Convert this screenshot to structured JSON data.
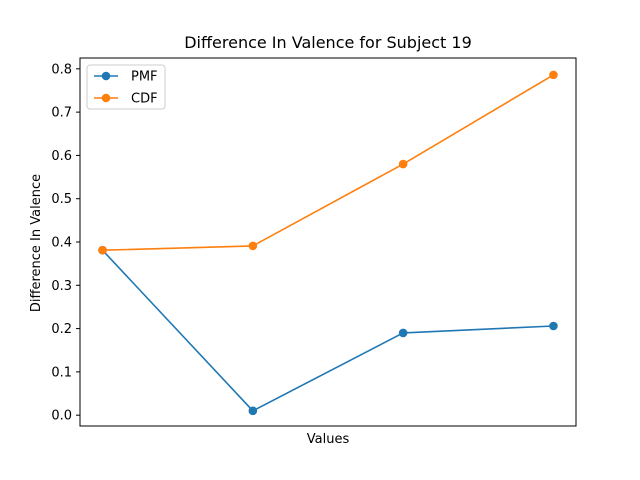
{
  "chart_data": {
    "type": "line",
    "title": "Difference In Valence for Subject 19",
    "xlabel": "Values",
    "ylabel": "Difference In Valence",
    "x": [
      1,
      2,
      3,
      4
    ],
    "xlim": [
      0.85,
      4.15
    ],
    "ylim": [
      -0.025,
      0.825
    ],
    "yticks": [
      0.0,
      0.1,
      0.2,
      0.3,
      0.4,
      0.5,
      0.6,
      0.7,
      0.8
    ],
    "ytick_labels": [
      "0.0",
      "0.1",
      "0.2",
      "0.3",
      "0.4",
      "0.5",
      "0.6",
      "0.7",
      "0.8"
    ],
    "grid": false,
    "legend_position": "top-left",
    "series": [
      {
        "name": "PMF",
        "color": "#1f77b4",
        "values": [
          0.381,
          0.01,
          0.19,
          0.206
        ]
      },
      {
        "name": "CDF",
        "color": "#ff7f0e",
        "values": [
          0.381,
          0.391,
          0.58,
          0.786
        ]
      }
    ]
  }
}
